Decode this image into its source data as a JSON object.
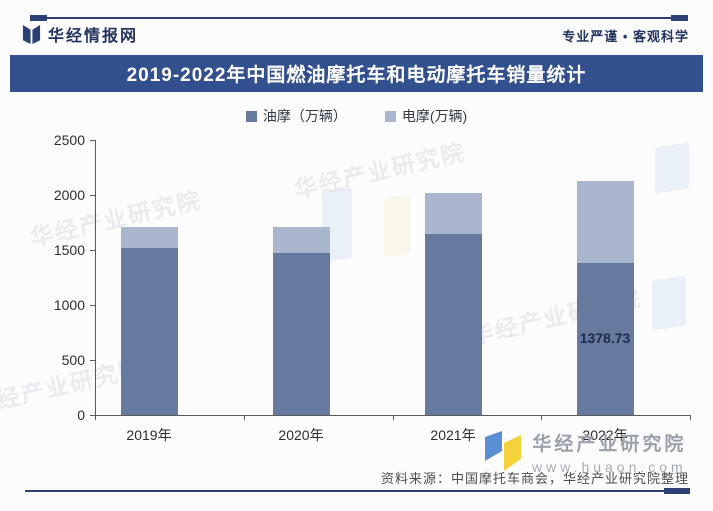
{
  "header": {
    "brand": "华经情报网",
    "slogan": "专业严谨 • 客观科学"
  },
  "title": "2019-2022年中国燃油摩托车和电动摩托车销量统计",
  "watermark": {
    "brand_text": "华经产业研究院"
  },
  "chart_data": {
    "type": "bar",
    "stacked": true,
    "title": "2019-2022年中国燃油摩托车和电动摩托车销量统计",
    "categories": [
      "2019年",
      "2020年",
      "2021年",
      "2022年"
    ],
    "series": [
      {
        "name": "油摩（万辆）",
        "color": "#66799f",
        "values": [
          1520,
          1470,
          1645,
          1378.73
        ]
      },
      {
        "name": "电摩(万辆)",
        "color": "#aab5ce",
        "values": [
          190,
          240,
          375,
          750
        ]
      }
    ],
    "visible_data_labels": [
      {
        "series": 0,
        "category_index": 3,
        "text": "1378.73"
      }
    ],
    "xlabel": "",
    "ylabel": "",
    "ylim": [
      0,
      2500
    ],
    "ytick_step": 500,
    "yticks": [
      0,
      500,
      1000,
      1500,
      2000,
      2500
    ],
    "grid": false,
    "legend_position": "top"
  },
  "footer": {
    "brand_name": "华经产业研究院",
    "brand_url": "www.huaon.com",
    "source": "资料来源：中国摩托车商会，华经产业研究院整理"
  },
  "colors": {
    "banner": "#33508e",
    "navy_text": "#22345f",
    "fuel_bar": "#66799f",
    "electric_bar": "#aab5ce",
    "axis": "#5a5a5a",
    "bar_label_text": "#1e2b4d",
    "source_text": "#4d4d4d",
    "footer_brand_text": "#9aa1ab"
  }
}
